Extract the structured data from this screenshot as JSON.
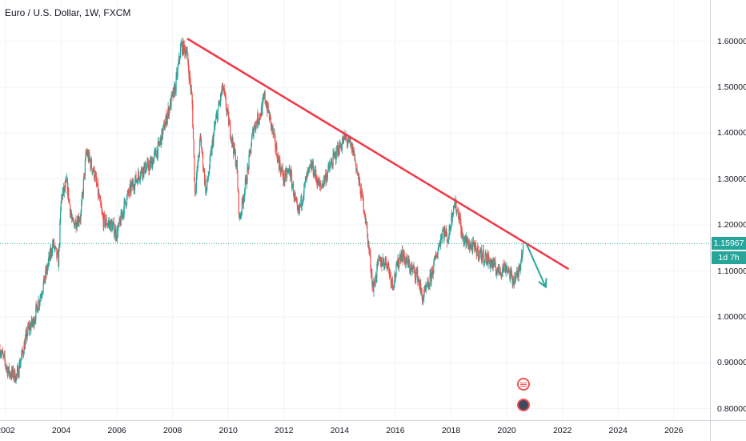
{
  "legend": {
    "title": "Euro / U.S. Dollar, 1W, FXCM"
  },
  "chart_data": {
    "type": "candlestick",
    "title": "Euro / U.S. Dollar, 1W, FXCM",
    "symbol": "Euro / U.S. Dollar",
    "interval": "1W",
    "source": "FXCM",
    "xlim": [
      2001.8,
      2027.3
    ],
    "ylim": [
      0.775,
      1.69
    ],
    "x_ticks": [
      "2002",
      "2004",
      "2006",
      "2008",
      "2010",
      "2012",
      "2014",
      "2016",
      "2018",
      "2020",
      "2022",
      "2024",
      "2026"
    ],
    "y_ticks": [
      "0.80000",
      "0.90000",
      "1.00000",
      "1.10000",
      "1.20000",
      "1.30000",
      "1.40000",
      "1.50000",
      "1.60000"
    ],
    "price_path": [
      [
        2001.8,
        0.93
      ],
      [
        2002.1,
        0.88
      ],
      [
        2002.4,
        0.87
      ],
      [
        2002.8,
        0.97
      ],
      [
        2003.0,
        0.99
      ],
      [
        2003.4,
        1.08
      ],
      [
        2003.7,
        1.16
      ],
      [
        2003.9,
        1.12
      ],
      [
        2004.0,
        1.26
      ],
      [
        2004.2,
        1.29
      ],
      [
        2004.4,
        1.2
      ],
      [
        2004.7,
        1.22
      ],
      [
        2004.9,
        1.36
      ],
      [
        2005.2,
        1.31
      ],
      [
        2005.5,
        1.21
      ],
      [
        2005.8,
        1.2
      ],
      [
        2006.0,
        1.18
      ],
      [
        2006.3,
        1.25
      ],
      [
        2006.5,
        1.28
      ],
      [
        2006.9,
        1.32
      ],
      [
        2007.2,
        1.33
      ],
      [
        2007.5,
        1.37
      ],
      [
        2007.9,
        1.46
      ],
      [
        2008.1,
        1.5
      ],
      [
        2008.3,
        1.59
      ],
      [
        2008.5,
        1.58
      ],
      [
        2008.7,
        1.47
      ],
      [
        2008.8,
        1.27
      ],
      [
        2009.0,
        1.39
      ],
      [
        2009.2,
        1.27
      ],
      [
        2009.5,
        1.41
      ],
      [
        2009.8,
        1.5
      ],
      [
        2010.0,
        1.43
      ],
      [
        2010.3,
        1.33
      ],
      [
        2010.4,
        1.21
      ],
      [
        2010.7,
        1.32
      ],
      [
        2010.9,
        1.41
      ],
      [
        2011.2,
        1.45
      ],
      [
        2011.3,
        1.48
      ],
      [
        2011.5,
        1.43
      ],
      [
        2011.8,
        1.34
      ],
      [
        2012.0,
        1.3
      ],
      [
        2012.2,
        1.32
      ],
      [
        2012.5,
        1.22
      ],
      [
        2012.8,
        1.3
      ],
      [
        2013.0,
        1.33
      ],
      [
        2013.3,
        1.28
      ],
      [
        2013.6,
        1.32
      ],
      [
        2013.9,
        1.36
      ],
      [
        2014.2,
        1.39
      ],
      [
        2014.5,
        1.36
      ],
      [
        2014.7,
        1.29
      ],
      [
        2014.9,
        1.23
      ],
      [
        2015.1,
        1.12
      ],
      [
        2015.2,
        1.06
      ],
      [
        2015.4,
        1.12
      ],
      [
        2015.7,
        1.12
      ],
      [
        2015.9,
        1.07
      ],
      [
        2016.2,
        1.14
      ],
      [
        2016.5,
        1.11
      ],
      [
        2016.8,
        1.09
      ],
      [
        2016.97,
        1.04
      ],
      [
        2017.2,
        1.07
      ],
      [
        2017.5,
        1.14
      ],
      [
        2017.7,
        1.19
      ],
      [
        2017.9,
        1.17
      ],
      [
        2018.1,
        1.25
      ],
      [
        2018.3,
        1.22
      ],
      [
        2018.4,
        1.17
      ],
      [
        2018.8,
        1.15
      ],
      [
        2019.0,
        1.14
      ],
      [
        2019.4,
        1.12
      ],
      [
        2019.7,
        1.1
      ],
      [
        2020.0,
        1.11
      ],
      [
        2020.2,
        1.08
      ],
      [
        2020.4,
        1.09
      ],
      [
        2020.6,
        1.16
      ]
    ],
    "trendline": {
      "from": [
        2008.55,
        1.605
      ],
      "to": [
        2022.2,
        1.105
      ],
      "color": "#f23645"
    },
    "projection_arrow": {
      "from": [
        2020.7,
        1.16
      ],
      "to": [
        2021.4,
        1.065
      ],
      "color": "#26a69a"
    },
    "last_price": {
      "value": 1.15967,
      "label": "1.15967",
      "time_label": "1d 7h",
      "color": "#26a69a"
    },
    "colors": {
      "up": "#26a69a",
      "down": "#ef5350",
      "grid": "#f0f3fa"
    },
    "grid": true,
    "event_markers": [
      {
        "x": 2020.6,
        "icon": "flag-icon"
      },
      {
        "x": 2020.6,
        "icon": "globe-icon"
      }
    ]
  }
}
